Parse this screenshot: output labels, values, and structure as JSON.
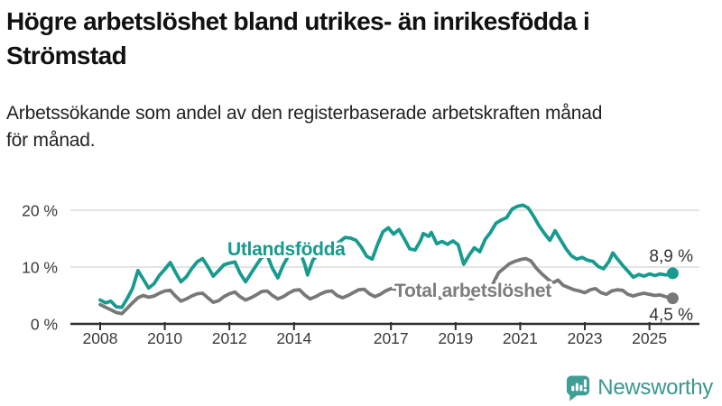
{
  "header": {
    "title_line1": "Högre arbetslöshet bland utrikes- än inrikesfödda i",
    "title_line2": "Strömstad",
    "subtitle_line1": "Arbetssökande som andel av den registerbaserade arbetskraften månad",
    "subtitle_line2": "för månad."
  },
  "footer": {
    "brand": "Newsworthy"
  },
  "colors": {
    "accent_teal": "#169b8e",
    "line_gray": "#787878",
    "label_gray": "#7d7d7d",
    "logo_teal": "#3a978f",
    "axis": "#2e2e2e",
    "gridline": "#dcdcdc",
    "tick_text": "#3a3a3a",
    "value_text": "#333333"
  },
  "chart_data": {
    "type": "line",
    "title": "Högre arbetslöshet bland utrikes- än inrikesfödda i Strömstad",
    "subtitle": "Arbetssökande som andel av den registerbaserade arbetskraften månad för månad.",
    "xlabel": "",
    "ylabel": "",
    "grid": "horizontal-only",
    "legend_position": "inline-labels",
    "ylim": [
      0,
      22
    ],
    "xlim": [
      2007.85,
      2026.3
    ],
    "y_ticks": [
      {
        "label": "0 %",
        "value": 0
      },
      {
        "label": "10 %",
        "value": 10
      },
      {
        "label": "20 %",
        "value": 20
      }
    ],
    "x_ticks": [
      {
        "label": "2008",
        "value": 2008
      },
      {
        "label": "2010",
        "value": 2010
      },
      {
        "label": "2012",
        "value": 2012
      },
      {
        "label": "2014",
        "value": 2014
      },
      {
        "label": "2017",
        "value": 2017
      },
      {
        "label": "2019",
        "value": 2019
      },
      {
        "label": "2021",
        "value": 2021
      },
      {
        "label": "2023",
        "value": 2023
      },
      {
        "label": "2025",
        "value": 2025
      }
    ],
    "series": [
      {
        "name": "Utlandsfödda",
        "color": "#169b8e",
        "end_value": 8.9,
        "end_label": "8,9 %",
        "points": [
          [
            2008.0,
            4.2
          ],
          [
            2008.17,
            3.7
          ],
          [
            2008.33,
            4.0
          ],
          [
            2008.5,
            3.0
          ],
          [
            2008.67,
            2.9
          ],
          [
            2008.83,
            4.4
          ],
          [
            2009.0,
            6.2
          ],
          [
            2009.17,
            9.4
          ],
          [
            2009.33,
            7.9
          ],
          [
            2009.5,
            6.3
          ],
          [
            2009.67,
            7.1
          ],
          [
            2009.83,
            8.5
          ],
          [
            2010.0,
            9.6
          ],
          [
            2010.17,
            10.8
          ],
          [
            2010.33,
            9.1
          ],
          [
            2010.5,
            7.4
          ],
          [
            2010.67,
            8.3
          ],
          [
            2010.83,
            9.7
          ],
          [
            2011.0,
            10.9
          ],
          [
            2011.17,
            11.5
          ],
          [
            2011.33,
            10.1
          ],
          [
            2011.5,
            8.4
          ],
          [
            2011.67,
            9.4
          ],
          [
            2011.83,
            10.4
          ],
          [
            2012.0,
            10.7
          ],
          [
            2012.17,
            10.9
          ],
          [
            2012.33,
            8.9
          ],
          [
            2012.5,
            7.4
          ],
          [
            2012.67,
            8.9
          ],
          [
            2012.83,
            10.3
          ],
          [
            2013.0,
            11.7
          ],
          [
            2013.17,
            12.1
          ],
          [
            2013.33,
            9.8
          ],
          [
            2013.5,
            8.1
          ],
          [
            2013.67,
            10.4
          ],
          [
            2013.83,
            12.0
          ],
          [
            2014.0,
            12.6
          ],
          [
            2014.17,
            12.9
          ],
          [
            2014.33,
            10.5
          ],
          [
            2014.42,
            8.6
          ],
          [
            2014.58,
            11.2
          ],
          [
            2014.75,
            12.3
          ],
          [
            2014.92,
            12.9
          ],
          [
            2015.08,
            13.2
          ],
          [
            2015.25,
            13.7
          ],
          [
            2015.42,
            14.5
          ],
          [
            2015.58,
            15.2
          ],
          [
            2015.75,
            15.1
          ],
          [
            2015.92,
            14.7
          ],
          [
            2016.08,
            13.5
          ],
          [
            2016.25,
            11.9
          ],
          [
            2016.42,
            11.4
          ],
          [
            2016.58,
            13.9
          ],
          [
            2016.75,
            16.2
          ],
          [
            2016.92,
            16.9
          ],
          [
            2017.08,
            15.8
          ],
          [
            2017.25,
            16.6
          ],
          [
            2017.42,
            14.9
          ],
          [
            2017.58,
            13.2
          ],
          [
            2017.75,
            13.0
          ],
          [
            2017.92,
            14.7
          ],
          [
            2018.0,
            15.9
          ],
          [
            2018.17,
            15.4
          ],
          [
            2018.25,
            16.1
          ],
          [
            2018.42,
            14.1
          ],
          [
            2018.58,
            14.5
          ],
          [
            2018.75,
            14.0
          ],
          [
            2018.92,
            14.6
          ],
          [
            2019.08,
            13.9
          ],
          [
            2019.25,
            10.5
          ],
          [
            2019.42,
            12.1
          ],
          [
            2019.58,
            13.4
          ],
          [
            2019.75,
            12.7
          ],
          [
            2019.92,
            14.9
          ],
          [
            2020.08,
            16.1
          ],
          [
            2020.25,
            17.7
          ],
          [
            2020.42,
            18.3
          ],
          [
            2020.58,
            18.7
          ],
          [
            2020.75,
            20.2
          ],
          [
            2020.92,
            20.7
          ],
          [
            2021.08,
            20.9
          ],
          [
            2021.25,
            20.4
          ],
          [
            2021.42,
            18.9
          ],
          [
            2021.58,
            17.3
          ],
          [
            2021.75,
            15.9
          ],
          [
            2021.92,
            14.7
          ],
          [
            2022.08,
            16.4
          ],
          [
            2022.25,
            14.8
          ],
          [
            2022.42,
            13.2
          ],
          [
            2022.58,
            12.0
          ],
          [
            2022.75,
            11.4
          ],
          [
            2022.92,
            11.7
          ],
          [
            2023.08,
            11.2
          ],
          [
            2023.25,
            11.0
          ],
          [
            2023.42,
            10.1
          ],
          [
            2023.58,
            9.7
          ],
          [
            2023.75,
            11.0
          ],
          [
            2023.87,
            12.5
          ],
          [
            2024.0,
            11.5
          ],
          [
            2024.17,
            10.3
          ],
          [
            2024.33,
            9.3
          ],
          [
            2024.5,
            8.2
          ],
          [
            2024.67,
            8.7
          ],
          [
            2024.83,
            8.4
          ],
          [
            2025.0,
            8.8
          ],
          [
            2025.17,
            8.5
          ],
          [
            2025.33,
            8.8
          ],
          [
            2025.5,
            8.6
          ],
          [
            2025.72,
            8.9
          ]
        ]
      },
      {
        "name": "Total arbetslöshet",
        "color": "#787878",
        "end_value": 4.5,
        "end_label": "4,5 %",
        "points": [
          [
            2008.0,
            3.4
          ],
          [
            2008.17,
            2.9
          ],
          [
            2008.33,
            2.5
          ],
          [
            2008.5,
            2.0
          ],
          [
            2008.67,
            1.8
          ],
          [
            2008.83,
            2.7
          ],
          [
            2009.0,
            3.7
          ],
          [
            2009.17,
            4.6
          ],
          [
            2009.33,
            5.0
          ],
          [
            2009.5,
            4.7
          ],
          [
            2009.67,
            4.9
          ],
          [
            2009.83,
            5.4
          ],
          [
            2010.0,
            5.8
          ],
          [
            2010.17,
            5.9
          ],
          [
            2010.33,
            4.9
          ],
          [
            2010.5,
            4.0
          ],
          [
            2010.67,
            4.4
          ],
          [
            2010.83,
            4.9
          ],
          [
            2011.0,
            5.3
          ],
          [
            2011.17,
            5.4
          ],
          [
            2011.33,
            4.6
          ],
          [
            2011.5,
            3.8
          ],
          [
            2011.67,
            4.1
          ],
          [
            2011.83,
            4.8
          ],
          [
            2012.0,
            5.3
          ],
          [
            2012.17,
            5.6
          ],
          [
            2012.33,
            4.8
          ],
          [
            2012.5,
            4.2
          ],
          [
            2012.67,
            4.6
          ],
          [
            2012.83,
            5.1
          ],
          [
            2013.0,
            5.7
          ],
          [
            2013.17,
            5.8
          ],
          [
            2013.33,
            5.0
          ],
          [
            2013.5,
            4.4
          ],
          [
            2013.67,
            4.8
          ],
          [
            2013.83,
            5.4
          ],
          [
            2014.0,
            5.9
          ],
          [
            2014.17,
            6.0
          ],
          [
            2014.33,
            5.1
          ],
          [
            2014.5,
            4.4
          ],
          [
            2014.67,
            4.8
          ],
          [
            2014.83,
            5.3
          ],
          [
            2015.0,
            5.7
          ],
          [
            2015.17,
            5.8
          ],
          [
            2015.33,
            5.0
          ],
          [
            2015.5,
            4.6
          ],
          [
            2015.67,
            5.0
          ],
          [
            2015.83,
            5.5
          ],
          [
            2016.0,
            6.0
          ],
          [
            2016.17,
            6.1
          ],
          [
            2016.33,
            5.3
          ],
          [
            2016.5,
            4.8
          ],
          [
            2016.67,
            5.2
          ],
          [
            2016.83,
            5.8
          ],
          [
            2017.0,
            6.2
          ],
          [
            2017.17,
            6.1
          ],
          [
            2017.33,
            5.3
          ],
          [
            2017.5,
            4.7
          ],
          [
            2017.67,
            5.0
          ],
          [
            2017.83,
            5.5
          ],
          [
            2018.0,
            5.9
          ],
          [
            2018.17,
            5.8
          ],
          [
            2018.33,
            5.0
          ],
          [
            2018.5,
            4.5
          ],
          [
            2018.67,
            4.8
          ],
          [
            2018.83,
            5.2
          ],
          [
            2019.0,
            5.5
          ],
          [
            2019.17,
            5.3
          ],
          [
            2019.33,
            4.6
          ],
          [
            2019.5,
            4.4
          ],
          [
            2019.67,
            4.7
          ],
          [
            2019.83,
            5.1
          ],
          [
            2020.0,
            5.6
          ],
          [
            2020.17,
            7.2
          ],
          [
            2020.33,
            9.0
          ],
          [
            2020.5,
            9.8
          ],
          [
            2020.67,
            10.6
          ],
          [
            2020.83,
            11.0
          ],
          [
            2021.0,
            11.3
          ],
          [
            2021.17,
            11.5
          ],
          [
            2021.33,
            11.1
          ],
          [
            2021.5,
            9.8
          ],
          [
            2021.67,
            8.8
          ],
          [
            2021.83,
            8.0
          ],
          [
            2022.0,
            7.2
          ],
          [
            2022.17,
            7.7
          ],
          [
            2022.33,
            6.8
          ],
          [
            2022.5,
            6.4
          ],
          [
            2022.67,
            6.0
          ],
          [
            2022.83,
            5.8
          ],
          [
            2023.0,
            5.5
          ],
          [
            2023.17,
            6.0
          ],
          [
            2023.33,
            6.2
          ],
          [
            2023.5,
            5.5
          ],
          [
            2023.67,
            5.2
          ],
          [
            2023.83,
            5.8
          ],
          [
            2024.0,
            6.0
          ],
          [
            2024.17,
            5.9
          ],
          [
            2024.33,
            5.2
          ],
          [
            2024.5,
            4.9
          ],
          [
            2024.67,
            5.2
          ],
          [
            2024.83,
            5.4
          ],
          [
            2025.0,
            5.2
          ],
          [
            2025.17,
            5.0
          ],
          [
            2025.33,
            5.1
          ],
          [
            2025.5,
            4.8
          ],
          [
            2025.72,
            4.5
          ]
        ]
      }
    ]
  }
}
